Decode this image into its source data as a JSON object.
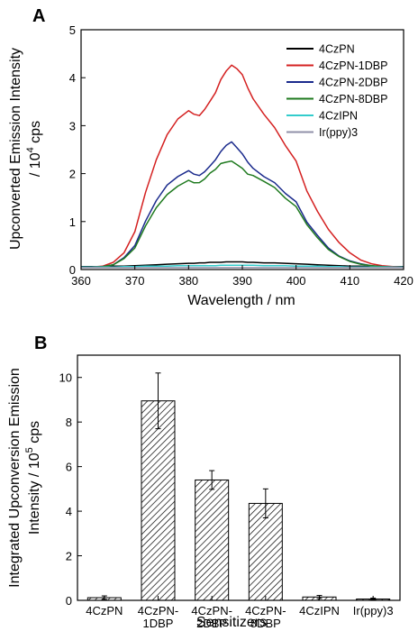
{
  "chart_data": [
    {
      "panel_label": "A",
      "type": "line",
      "xlabel": "Wavelength / nm",
      "ylabel_line1": "Upconverted Emission Intensity",
      "ylabel_line2_prefix": "/ 10",
      "ylabel_line2_exp": "4",
      "ylabel_line2_suffix": " cps",
      "xlim": [
        360,
        420
      ],
      "ylim": [
        0,
        5
      ],
      "xticks": [
        360,
        370,
        380,
        390,
        400,
        410,
        420
      ],
      "yticks": [
        0,
        1,
        2,
        3,
        4,
        5
      ],
      "legend_position": "top-right",
      "x": [
        360,
        362,
        364,
        366,
        368,
        370,
        372,
        374,
        376,
        378,
        380,
        381,
        382,
        383,
        384,
        385,
        386,
        387,
        388,
        389,
        390,
        391,
        392,
        394,
        396,
        398,
        400,
        402,
        404,
        406,
        408,
        410,
        412,
        414,
        416,
        418,
        420
      ],
      "series": [
        {
          "name": "4CzPN",
          "color": "#000000",
          "values": [
            0.06,
            0.06,
            0.06,
            0.07,
            0.07,
            0.08,
            0.09,
            0.1,
            0.11,
            0.12,
            0.13,
            0.13,
            0.14,
            0.14,
            0.15,
            0.15,
            0.15,
            0.16,
            0.16,
            0.16,
            0.16,
            0.15,
            0.15,
            0.14,
            0.14,
            0.13,
            0.12,
            0.11,
            0.1,
            0.09,
            0.08,
            0.07,
            0.07,
            0.06,
            0.06,
            0.06,
            0.06
          ]
        },
        {
          "name": "4CzPN-1DBP",
          "color": "#d42020",
          "values": [
            0.05,
            0.05,
            0.07,
            0.15,
            0.35,
            0.8,
            1.6,
            2.3,
            2.8,
            3.15,
            3.3,
            3.25,
            3.2,
            3.35,
            3.5,
            3.7,
            3.95,
            4.15,
            4.25,
            4.2,
            4.05,
            3.8,
            3.55,
            3.25,
            2.95,
            2.6,
            2.25,
            1.65,
            1.2,
            0.85,
            0.55,
            0.35,
            0.2,
            0.12,
            0.08,
            0.06,
            0.05
          ]
        },
        {
          "name": "4CzPN-2DBP",
          "color": "#1a2a8c",
          "values": [
            0.05,
            0.05,
            0.06,
            0.1,
            0.25,
            0.5,
            1.0,
            1.45,
            1.75,
            1.95,
            2.05,
            2.0,
            1.95,
            2.05,
            2.15,
            2.3,
            2.45,
            2.6,
            2.65,
            2.55,
            2.4,
            2.25,
            2.1,
            1.95,
            1.8,
            1.6,
            1.4,
            1.0,
            0.7,
            0.45,
            0.28,
            0.18,
            0.12,
            0.08,
            0.06,
            0.05,
            0.05
          ]
        },
        {
          "name": "4CzPN-8DBP",
          "color": "#1f7a1f",
          "values": [
            0.05,
            0.05,
            0.06,
            0.1,
            0.23,
            0.45,
            0.9,
            1.3,
            1.55,
            1.75,
            1.85,
            1.82,
            1.8,
            1.9,
            2.0,
            2.1,
            2.2,
            2.25,
            2.25,
            2.2,
            2.1,
            2.0,
            1.95,
            1.85,
            1.7,
            1.5,
            1.3,
            0.95,
            0.65,
            0.42,
            0.27,
            0.17,
            0.11,
            0.08,
            0.06,
            0.05,
            0.05
          ]
        },
        {
          "name": "4CzIPN",
          "color": "#33cccc",
          "values": [
            0.05,
            0.05,
            0.05,
            0.05,
            0.06,
            0.06,
            0.07,
            0.07,
            0.07,
            0.08,
            0.08,
            0.08,
            0.08,
            0.08,
            0.08,
            0.08,
            0.09,
            0.09,
            0.09,
            0.09,
            0.09,
            0.09,
            0.09,
            0.08,
            0.08,
            0.08,
            0.07,
            0.07,
            0.07,
            0.06,
            0.06,
            0.05,
            0.05,
            0.05,
            0.05,
            0.05,
            0.05
          ]
        },
        {
          "name": "Ir(ppy)3",
          "color": "#9090a8",
          "values": [
            0.04,
            0.04,
            0.04,
            0.04,
            0.04,
            0.04,
            0.04,
            0.04,
            0.04,
            0.04,
            0.04,
            0.04,
            0.04,
            0.04,
            0.04,
            0.04,
            0.04,
            0.04,
            0.04,
            0.04,
            0.04,
            0.04,
            0.04,
            0.04,
            0.04,
            0.04,
            0.04,
            0.04,
            0.04,
            0.04,
            0.04,
            0.04,
            0.04,
            0.04,
            0.04,
            0.04,
            0.04
          ]
        }
      ]
    },
    {
      "panel_label": "B",
      "type": "bar",
      "xlabel": "Sensitizers",
      "ylabel_line1": "Integrated Upconversion Emission",
      "ylabel_line2_prefix": "Intensity / 10",
      "ylabel_line2_exp": "5",
      "ylabel_line2_suffix": " cps",
      "ylim": [
        0,
        11
      ],
      "yticks": [
        0,
        2,
        4,
        6,
        8,
        10
      ],
      "categories": [
        [
          "4CzPN"
        ],
        [
          "4CzPN-",
          "1DBP"
        ],
        [
          "4CzPN-",
          "2DBP"
        ],
        [
          "4CzPN-",
          "8DBP"
        ],
        [
          "4CzIPN"
        ],
        [
          "Ir(ppy)3"
        ]
      ],
      "values": [
        0.12,
        8.95,
        5.4,
        4.35,
        0.15,
        0.06
      ],
      "errors": [
        0.08,
        1.25,
        0.42,
        0.65,
        0.07,
        0.04
      ],
      "bar_fill": "hatched"
    }
  ]
}
